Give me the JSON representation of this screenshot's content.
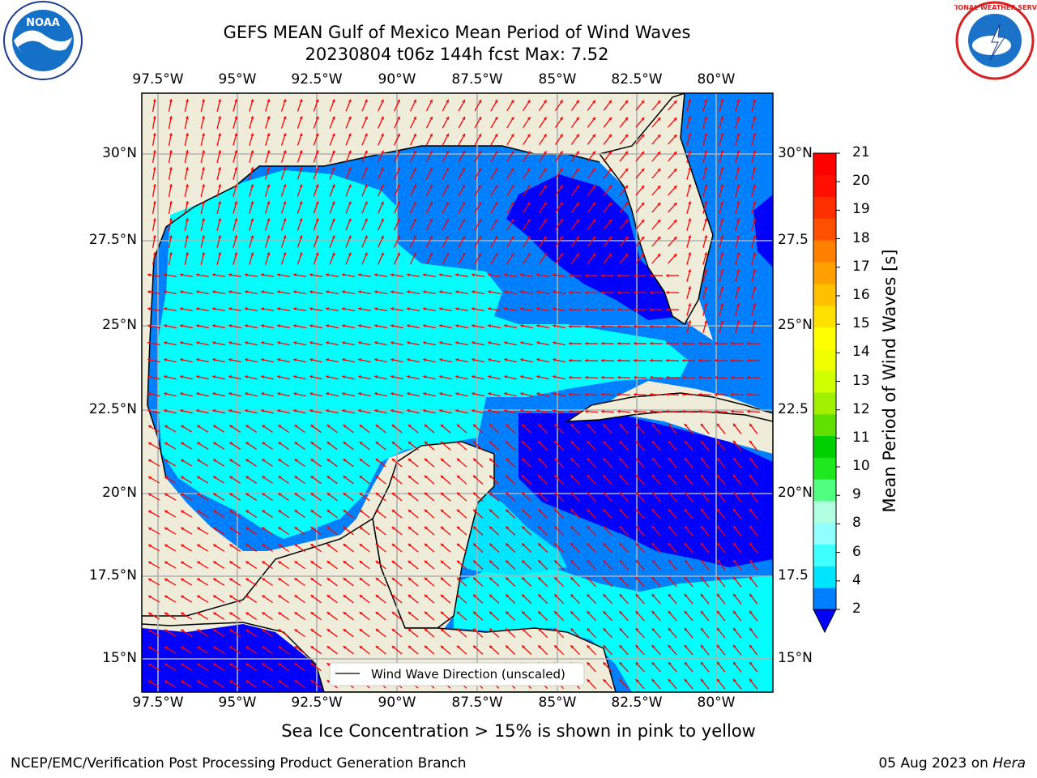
{
  "title": {
    "line1": "GEFS MEAN Gulf of Mexico Mean Period of Wind Waves",
    "line2": "20230804 t06z 144h fcst   Max: 7.52"
  },
  "logos": {
    "left": {
      "icon": "noaa-logo",
      "text": "NOAA"
    },
    "right": {
      "icon": "nws-logo",
      "text": "NATIONAL WEATHER SERVICE"
    }
  },
  "map": {
    "lon_labels": [
      "97.5°W",
      "95°W",
      "92.5°W",
      "90°W",
      "87.5°W",
      "85°W",
      "82.5°W",
      "80°W"
    ],
    "lat_labels_left": [
      "30°N",
      "27.5°N",
      "25°N",
      "22.5°N",
      "20°N",
      "17.5°N",
      "15°N"
    ],
    "lat_labels_right": [
      "30°N",
      "27.5",
      "25°N",
      "22.5",
      "20°N",
      "17.5",
      "15°N"
    ],
    "legend": "Wind Wave Direction (unscaled)",
    "colors": {
      "land": "#efedd9",
      "coast": "#000000",
      "grid": "#b0b0b0",
      "arrow": "#ff0000"
    }
  },
  "colorbar": {
    "label": "Mean Period of Wind Waves [s]",
    "ticks": [
      "2",
      "4",
      "6",
      "8",
      "9",
      "10",
      "11",
      "12",
      "13",
      "14",
      "15",
      "16",
      "17",
      "18",
      "19",
      "20",
      "21"
    ],
    "colors": [
      "#0080ff",
      "#00e5ff",
      "#40ffff",
      "#90ffff",
      "#b0ffe0",
      "#50ff80",
      "#20e820",
      "#00d000",
      "#60e000",
      "#a0f000",
      "#d0ff00",
      "#f0ff00",
      "#ffff00",
      "#ffe000",
      "#ffc000",
      "#ffa000",
      "#ff8000",
      "#ff5000",
      "#ff3000",
      "#ff1000",
      "#ff0000"
    ],
    "under_color": "#0000ff"
  },
  "caption": "Sea Ice Concentration > 15% is shown in pink to yellow",
  "footer": {
    "left": "NCEP/EMC/Verification Post Processing Product Generation Branch",
    "right_date": "05 Aug 2023 on ",
    "right_host": "Hera"
  }
}
